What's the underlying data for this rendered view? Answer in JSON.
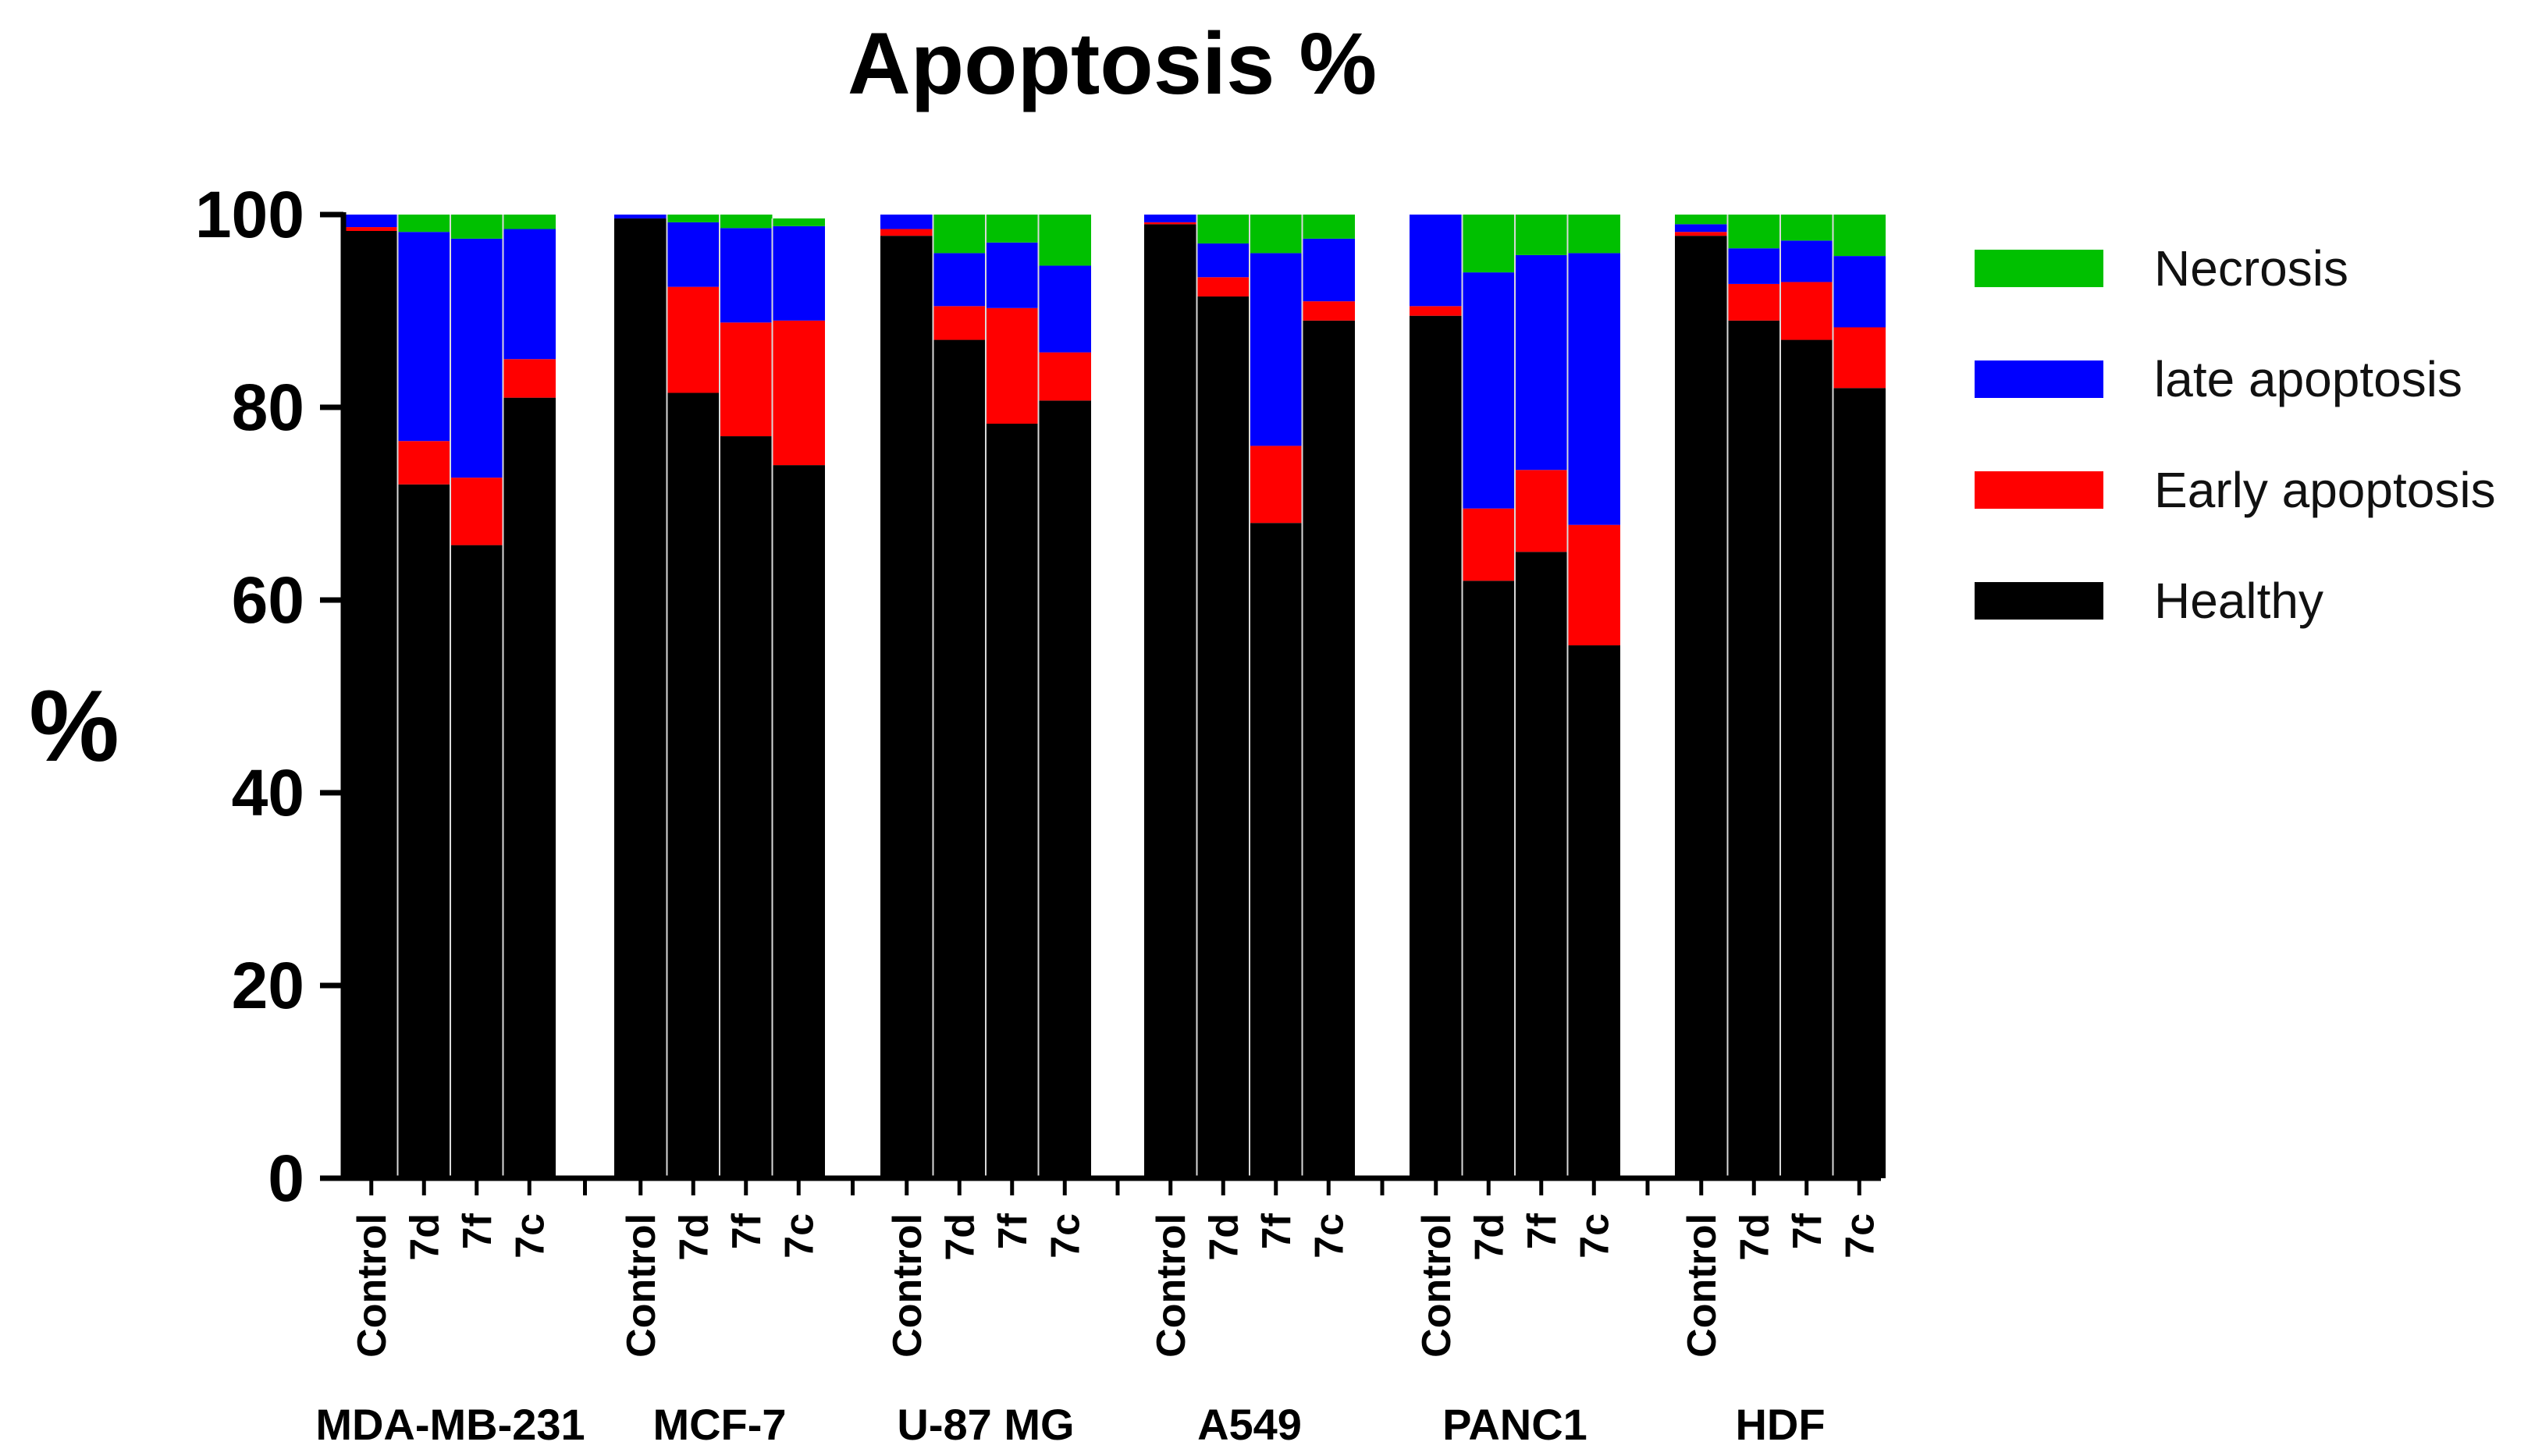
{
  "chart_data": {
    "type": "bar",
    "stacked": true,
    "title": "Apoptosis %",
    "ylabel": "%",
    "xlabel": "",
    "ylim": [
      0,
      100
    ],
    "yticks": [
      0,
      20,
      40,
      60,
      80,
      100
    ],
    "legend_position": "right",
    "series": [
      {
        "name": "Necrosis",
        "color": "#00c000"
      },
      {
        "name": "late apoptosis",
        "color": "#0000ff"
      },
      {
        "name": "Early apoptosis",
        "color": "#ff0000"
      },
      {
        "name": "Healthy",
        "color": "#000000"
      }
    ],
    "groups": [
      {
        "name": "MDA-MB-231",
        "bars": [
          {
            "label": "Control",
            "Healthy": 98.3,
            "Early apoptosis": 0.4,
            "late apoptosis": 1.3,
            "Necrosis": 0.0
          },
          {
            "label": "7d",
            "Healthy": 72.0,
            "Early apoptosis": 4.5,
            "late apoptosis": 21.7,
            "Necrosis": 1.8
          },
          {
            "label": "7f",
            "Healthy": 65.7,
            "Early apoptosis": 7.0,
            "late apoptosis": 24.8,
            "Necrosis": 2.5
          },
          {
            "label": "7c",
            "Healthy": 81.0,
            "Early apoptosis": 4.0,
            "late apoptosis": 13.5,
            "Necrosis": 1.5
          }
        ]
      },
      {
        "name": "MCF-7",
        "bars": [
          {
            "label": "Control",
            "Healthy": 99.6,
            "Early apoptosis": 0.0,
            "late apoptosis": 0.4,
            "Necrosis": 0.0
          },
          {
            "label": "7d",
            "Healthy": 81.5,
            "Early apoptosis": 11.0,
            "late apoptosis": 6.7,
            "Necrosis": 0.8
          },
          {
            "label": "7f",
            "Healthy": 77.0,
            "Early apoptosis": 11.8,
            "late apoptosis": 9.8,
            "Necrosis": 1.4
          },
          {
            "label": "7c",
            "Healthy": 74.0,
            "Early apoptosis": 15.0,
            "late apoptosis": 9.8,
            "Necrosis": 0.8
          }
        ]
      },
      {
        "name": "U-87 MG",
        "bars": [
          {
            "label": "Control",
            "Healthy": 97.8,
            "Early apoptosis": 0.7,
            "late apoptosis": 1.5,
            "Necrosis": 0.0
          },
          {
            "label": "7d",
            "Healthy": 87.0,
            "Early apoptosis": 3.5,
            "late apoptosis": 5.5,
            "Necrosis": 4.0
          },
          {
            "label": "7f",
            "Healthy": 78.3,
            "Early apoptosis": 12.0,
            "late apoptosis": 6.8,
            "Necrosis": 2.9
          },
          {
            "label": "7c",
            "Healthy": 80.7,
            "Early apoptosis": 5.0,
            "late apoptosis": 9.0,
            "Necrosis": 5.3
          }
        ]
      },
      {
        "name": "A549",
        "bars": [
          {
            "label": "Control",
            "Healthy": 99.0,
            "Early apoptosis": 0.2,
            "late apoptosis": 0.8,
            "Necrosis": 0.0
          },
          {
            "label": "7d",
            "Healthy": 91.5,
            "Early apoptosis": 2.0,
            "late apoptosis": 3.5,
            "Necrosis": 3.0
          },
          {
            "label": "7f",
            "Healthy": 68.0,
            "Early apoptosis": 8.0,
            "late apoptosis": 20.0,
            "Necrosis": 4.0
          },
          {
            "label": "7c",
            "Healthy": 89.0,
            "Early apoptosis": 2.0,
            "late apoptosis": 6.5,
            "Necrosis": 2.5
          }
        ]
      },
      {
        "name": "PANC1",
        "bars": [
          {
            "label": "Control",
            "Healthy": 89.5,
            "Early apoptosis": 1.0,
            "late apoptosis": 9.5,
            "Necrosis": 0.0
          },
          {
            "label": "7d",
            "Healthy": 62.0,
            "Early apoptosis": 7.5,
            "late apoptosis": 24.5,
            "Necrosis": 6.0
          },
          {
            "label": "7f",
            "Healthy": 65.0,
            "Early apoptosis": 8.5,
            "late apoptosis": 22.3,
            "Necrosis": 4.2
          },
          {
            "label": "7c",
            "Healthy": 55.3,
            "Early apoptosis": 12.5,
            "late apoptosis": 28.2,
            "Necrosis": 4.0
          }
        ]
      },
      {
        "name": "HDF",
        "bars": [
          {
            "label": "Control",
            "Healthy": 97.8,
            "Early apoptosis": 0.4,
            "late apoptosis": 0.8,
            "Necrosis": 1.0
          },
          {
            "label": "7d",
            "Healthy": 89.0,
            "Early apoptosis": 3.8,
            "late apoptosis": 3.7,
            "Necrosis": 3.5
          },
          {
            "label": "7f",
            "Healthy": 87.0,
            "Early apoptosis": 6.0,
            "late apoptosis": 4.3,
            "Necrosis": 2.7
          },
          {
            "label": "7c",
            "Healthy": 82.0,
            "Early apoptosis": 6.3,
            "late apoptosis": 7.4,
            "Necrosis": 4.3
          }
        ]
      }
    ]
  }
}
